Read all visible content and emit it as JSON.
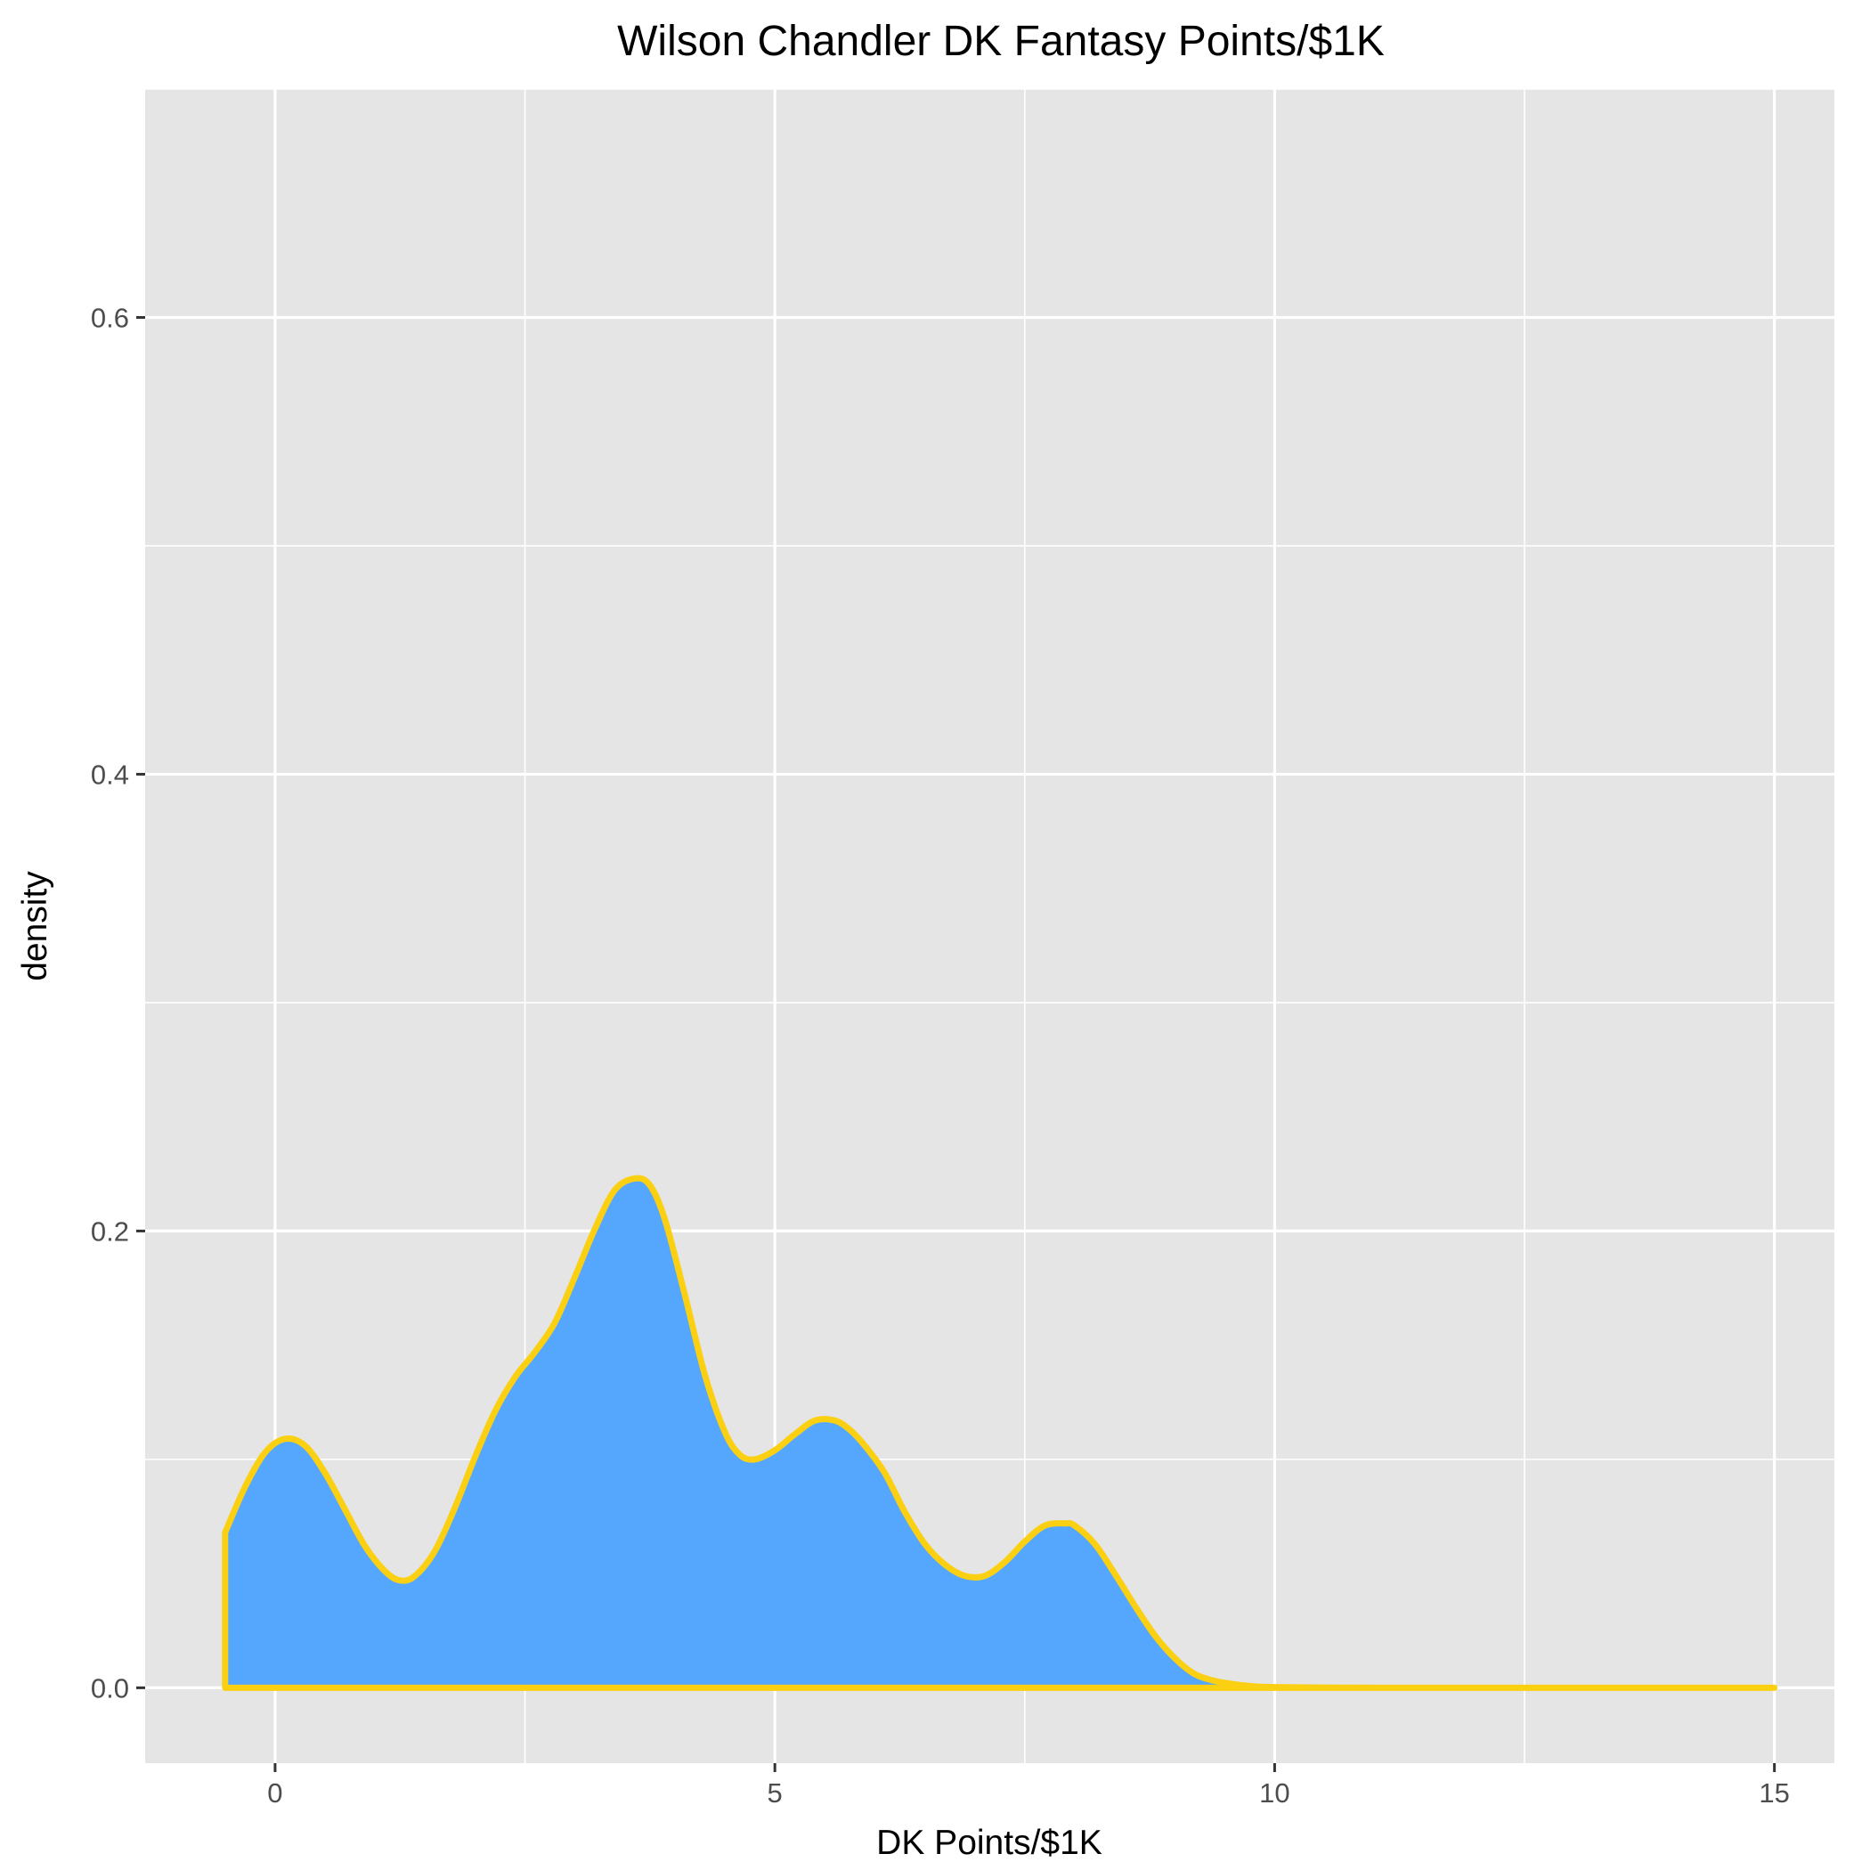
{
  "chart_data": {
    "type": "area",
    "title": "Wilson Chandler DK Fantasy Points/$1K",
    "xlabel": "DK Points/$1K",
    "ylabel": "density",
    "xlim": [
      -1.3,
      15.6
    ],
    "ylim": [
      -0.033,
      0.7
    ],
    "x_ticks": [
      0,
      5,
      10,
      15
    ],
    "x_tick_labels": [
      "0",
      "5",
      "10",
      "15"
    ],
    "x_minor_ticks": [
      2.5,
      7.5,
      12.5
    ],
    "y_ticks": [
      0.0,
      0.2,
      0.4,
      0.6
    ],
    "y_tick_labels": [
      "0.0",
      "0.2",
      "0.4",
      "0.6"
    ],
    "y_minor_ticks": [
      0.1,
      0.3,
      0.5,
      0.7
    ],
    "grid": true,
    "legend": "none",
    "colors": {
      "fill": "#54a7fd",
      "outline": "#fcd012",
      "panel": "#e5e5e5",
      "grid": "#ffffff"
    },
    "series": [
      {
        "x": [
          -0.5,
          -0.3,
          -0.1,
          0.1,
          0.3,
          0.5,
          0.7,
          0.9,
          1.1,
          1.25,
          1.4,
          1.6,
          1.8,
          2.0,
          2.2,
          2.4,
          2.6,
          2.8,
          3.0,
          3.2,
          3.4,
          3.6,
          3.75,
          3.9,
          4.1,
          4.3,
          4.5,
          4.65,
          4.8,
          5.0,
          5.2,
          5.4,
          5.6,
          5.75,
          5.9,
          6.1,
          6.3,
          6.5,
          6.7,
          6.9,
          7.1,
          7.3,
          7.5,
          7.7,
          7.9,
          8.0,
          8.2,
          8.4,
          8.6,
          8.8,
          9.0,
          9.2,
          9.4,
          9.6,
          9.8,
          10.0,
          10.5,
          11.0,
          12.0,
          13.0,
          14.0,
          15.0
        ],
        "y": [
          0.068,
          0.088,
          0.103,
          0.109,
          0.106,
          0.094,
          0.078,
          0.062,
          0.051,
          0.047,
          0.049,
          0.06,
          0.079,
          0.101,
          0.121,
          0.136,
          0.147,
          0.16,
          0.18,
          0.201,
          0.218,
          0.223,
          0.22,
          0.205,
          0.172,
          0.137,
          0.112,
          0.102,
          0.1,
          0.104,
          0.111,
          0.117,
          0.117,
          0.113,
          0.106,
          0.094,
          0.077,
          0.063,
          0.054,
          0.049,
          0.049,
          0.055,
          0.064,
          0.071,
          0.072,
          0.071,
          0.063,
          0.05,
          0.036,
          0.023,
          0.013,
          0.006,
          0.003,
          0.0015,
          0.0006,
          0.0003,
          0.0001,
          0.0,
          0.0,
          0.0,
          0.0,
          0.0
        ]
      }
    ]
  }
}
